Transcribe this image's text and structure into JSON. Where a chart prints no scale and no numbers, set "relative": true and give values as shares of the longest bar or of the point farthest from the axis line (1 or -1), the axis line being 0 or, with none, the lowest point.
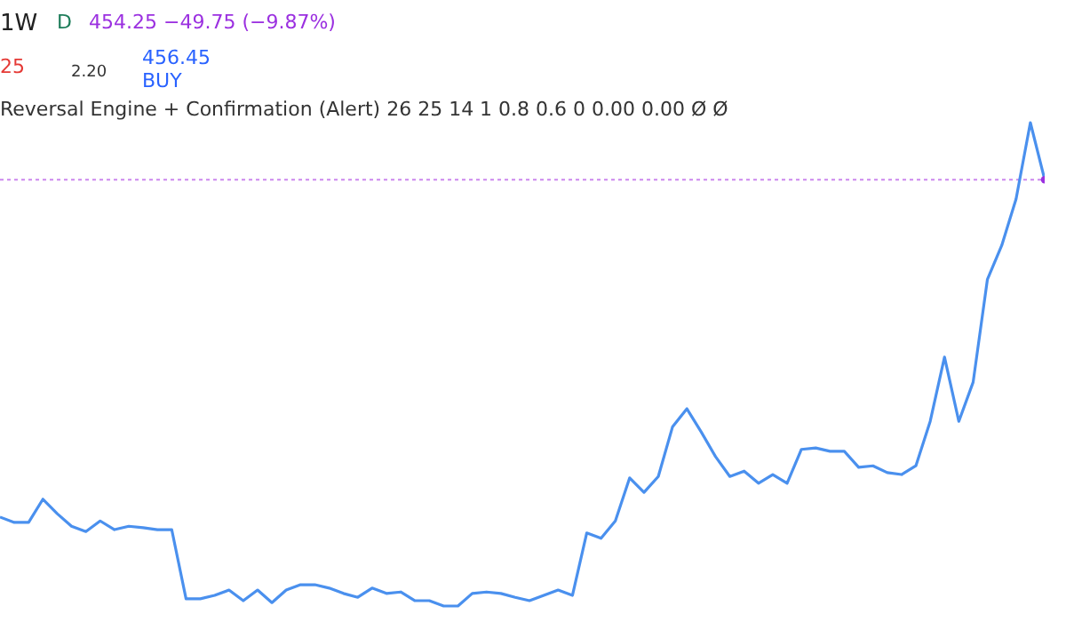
{
  "chart_data": {
    "type": "line",
    "relative": true,
    "title": "1W",
    "annotations": [
      "D",
      "454.25 −49.75 (−9.87%)",
      "25",
      "2.20",
      "456.45",
      "BUY",
      "Reversal Engine + Confirmation (Alert) 26 25 14 1 0.8 0.6 0 0.00 0.00 Ø Ø"
    ],
    "categories": [
      null,
      null,
      null,
      null,
      null,
      null,
      null,
      null,
      null,
      null,
      null,
      null,
      null,
      null,
      null,
      null,
      null,
      null,
      null,
      null,
      null,
      null,
      null,
      null,
      null,
      null,
      null,
      null,
      null,
      null,
      null,
      null,
      null,
      null,
      null,
      null,
      null,
      null,
      null,
      null,
      null,
      null,
      null,
      null,
      null,
      null,
      null,
      null,
      null,
      null,
      null,
      null,
      null,
      null,
      null,
      null,
      null,
      null,
      null,
      null,
      null,
      null,
      null,
      null,
      null,
      null,
      null,
      null,
      null,
      null,
      null,
      null,
      null,
      null
    ],
    "series": [
      {
        "color": "#4a90ee",
        "values": [
          0.184,
          0.173,
          0.173,
          0.221,
          0.191,
          0.165,
          0.154,
          0.176,
          0.158,
          0.165,
          0.162,
          0.158,
          0.158,
          0.015,
          0.015,
          0.022,
          0.033,
          0.011,
          0.033,
          0.007,
          0.033,
          0.044,
          0.044,
          0.037,
          0.026,
          0.018,
          0.037,
          0.026,
          0.029,
          0.011,
          0.011,
          0,
          0,
          0.026,
          0.029,
          0.026,
          0.018,
          0.011,
          0.022,
          0.033,
          0.022,
          0.151,
          0.14,
          0.176,
          0.265,
          0.235,
          0.268,
          0.371,
          0.408,
          0.36,
          0.309,
          0.268,
          0.279,
          0.254,
          0.272,
          0.254,
          0.324,
          0.327,
          0.32,
          0.32,
          0.287,
          0.29,
          0.276,
          0.272,
          0.29,
          0.382,
          0.515,
          0.382,
          0.463,
          0.676,
          0.746,
          0.842,
          1,
          0.882
        ]
      }
    ],
    "ref_lines": [
      {
        "axis": "y",
        "value": 0.882,
        "color": "#cc88ee",
        "line_style": "dotted"
      }
    ],
    "marker": "none"
  }
}
